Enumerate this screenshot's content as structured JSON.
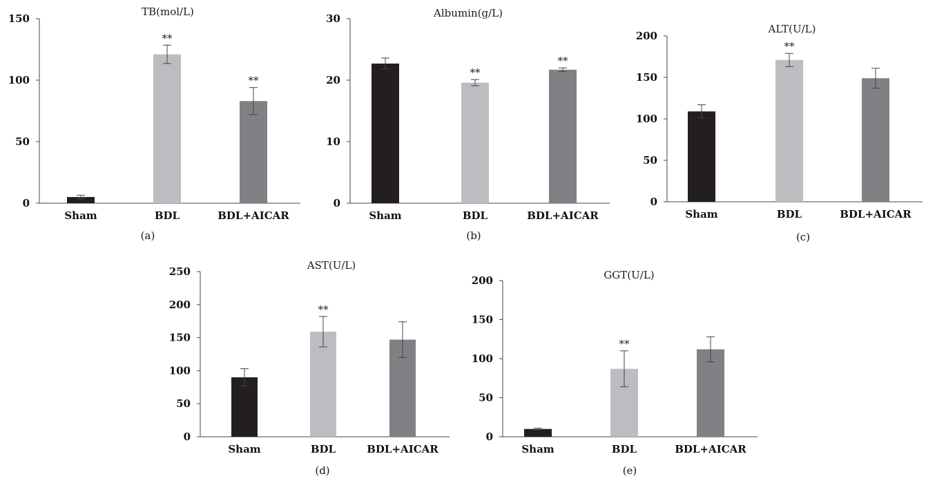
{
  "colors": [
    "#231f20",
    "#bcbdc0",
    "#808184"
  ],
  "chart_data": [
    {
      "type": "bar",
      "title": "TB(mol/L)",
      "panel_label": "(a)",
      "categories": [
        "Sham",
        "BDL",
        "BDL+AICAR"
      ],
      "values": [
        5,
        121,
        83
      ],
      "errors": [
        1.5,
        7.5,
        11
      ],
      "significance": [
        "",
        "**",
        "**"
      ],
      "yticks": [
        0,
        50,
        100,
        150
      ],
      "ylim": [
        0,
        150
      ]
    },
    {
      "type": "bar",
      "title": "Albumin(g/L)",
      "panel_label": "(b)",
      "categories": [
        "Sham",
        "BDL",
        "BDL+AICAR"
      ],
      "values": [
        22.7,
        19.6,
        21.7
      ],
      "errors": [
        0.9,
        0.5,
        0.3
      ],
      "significance": [
        "",
        "**",
        "**"
      ],
      "yticks": [
        0,
        10,
        20,
        30
      ],
      "ylim": [
        0,
        30
      ]
    },
    {
      "type": "bar",
      "title": "ALT(U/L)",
      "panel_label": "(c)",
      "categories": [
        "Sham",
        "BDL",
        "BDL+AICAR"
      ],
      "values": [
        109,
        171,
        149
      ],
      "errors": [
        8,
        8,
        12
      ],
      "significance": [
        "",
        "**",
        ""
      ],
      "yticks": [
        0,
        50,
        100,
        150,
        200
      ],
      "ylim": [
        0,
        200
      ]
    },
    {
      "type": "bar",
      "title": "AST(U/L)",
      "panel_label": "(d)",
      "categories": [
        "Sham",
        "BDL",
        "BDL+AICAR"
      ],
      "values": [
        90,
        159,
        147
      ],
      "errors": [
        13,
        23,
        27
      ],
      "significance": [
        "",
        "**",
        ""
      ],
      "yticks": [
        0,
        50,
        100,
        150,
        200,
        250
      ],
      "ylim": [
        0,
        250
      ]
    },
    {
      "type": "bar",
      "title": "GGT(U/L)",
      "panel_label": "(e)",
      "categories": [
        "Sham",
        "BDL",
        "BDL+AICAR"
      ],
      "values": [
        10,
        87,
        112
      ],
      "errors": [
        1,
        23,
        16
      ],
      "significance": [
        "",
        "**",
        ""
      ],
      "yticks": [
        0,
        50,
        100,
        150,
        200
      ],
      "ylim": [
        0,
        200
      ]
    }
  ]
}
